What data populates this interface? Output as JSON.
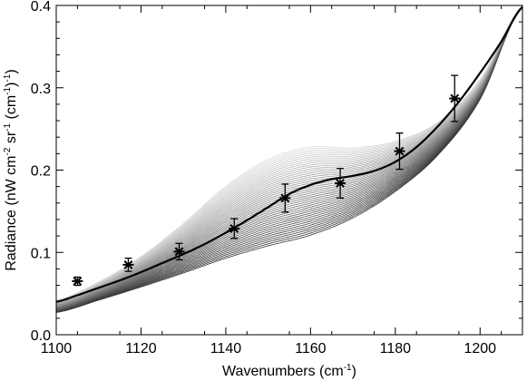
{
  "chart_data": {
    "type": "line",
    "title": "",
    "xlabel": "Wavenumbers (cm",
    "xlabel_sup": "-1",
    "xlabel_end": ")",
    "ylabel_parts": [
      "Radiance (nW cm",
      "-2",
      " sr",
      "-1",
      " (cm",
      "-1",
      ")",
      "-1",
      ")"
    ],
    "xlim": [
      1100,
      1210
    ],
    "ylim": [
      0,
      0.4
    ],
    "xticks": [
      1100,
      1120,
      1140,
      1160,
      1180,
      1200
    ],
    "yticks": [
      0.0,
      0.1,
      0.2,
      0.3,
      0.4
    ],
    "ytick_labels": [
      "0.0",
      "0.1",
      "0.2",
      "0.3",
      "0.4"
    ],
    "grid": false,
    "model_family": {
      "count": 45,
      "x": [
        1100,
        1110,
        1120,
        1130,
        1140,
        1150,
        1160,
        1170,
        1180,
        1190,
        1200,
        1210
      ],
      "lower": [
        0.027,
        0.042,
        0.058,
        0.075,
        0.093,
        0.108,
        0.121,
        0.142,
        0.174,
        0.218,
        0.286,
        0.4
      ],
      "upper": [
        0.042,
        0.064,
        0.095,
        0.135,
        0.18,
        0.213,
        0.228,
        0.227,
        0.235,
        0.258,
        0.31,
        0.4
      ],
      "color_lower": "#333333",
      "color_upper": "#d8d8d8"
    },
    "best_fit": {
      "x": [
        1100,
        1105,
        1110,
        1115,
        1120,
        1125,
        1130,
        1135,
        1140,
        1145,
        1150,
        1155,
        1160,
        1165,
        1170,
        1175,
        1180,
        1185,
        1190,
        1195,
        1200,
        1205,
        1210
      ],
      "y": [
        0.04,
        0.048,
        0.057,
        0.066,
        0.076,
        0.087,
        0.098,
        0.11,
        0.124,
        0.139,
        0.155,
        0.171,
        0.182,
        0.189,
        0.193,
        0.199,
        0.21,
        0.228,
        0.253,
        0.283,
        0.318,
        0.356,
        0.398
      ],
      "color": "#000000"
    },
    "observations": {
      "x": [
        1105,
        1117,
        1129,
        1142,
        1154,
        1167,
        1181,
        1194
      ],
      "y": [
        0.065,
        0.085,
        0.101,
        0.129,
        0.166,
        0.184,
        0.223,
        0.287
      ],
      "err": [
        0.005,
        0.008,
        0.01,
        0.012,
        0.017,
        0.018,
        0.022,
        0.028
      ],
      "marker": "asterisk"
    }
  }
}
